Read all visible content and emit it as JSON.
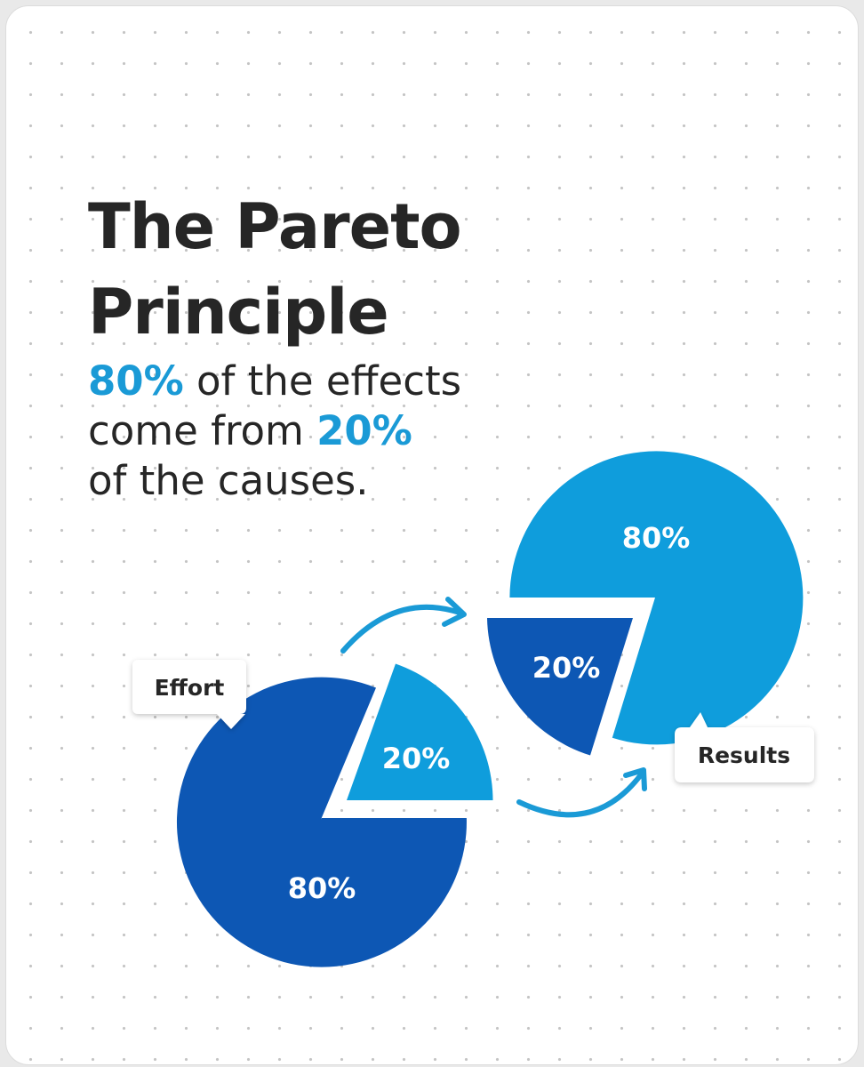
{
  "title_lines": [
    "The Pareto",
    "Principle"
  ],
  "subtitle": {
    "line1": {
      "highlight": "80%",
      "rest": " of the effects"
    },
    "line2": {
      "prefix": "come from ",
      "highlight": "20%"
    },
    "line3": "of the causes."
  },
  "colors": {
    "accent": "#1a9ad6",
    "dark_blue": "#0d57b4",
    "light_blue": "#0f9ddc",
    "text": "#262626"
  },
  "effort": {
    "label": "Effort",
    "major_label": "80%",
    "minor_label": "20%"
  },
  "results": {
    "label": "Results",
    "major_label": "80%",
    "minor_label": "20%"
  },
  "icons": [
    "arrow-right-icon",
    "arrow-right-icon"
  ]
}
